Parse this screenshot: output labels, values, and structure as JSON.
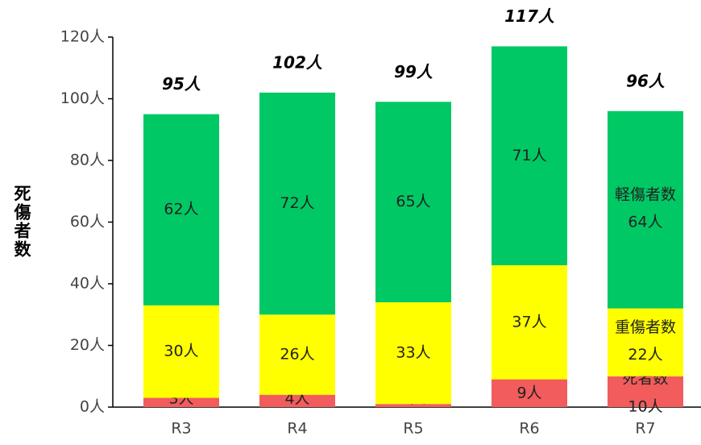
{
  "chart_data": {
    "type": "stacked_bar",
    "y_label": "死傷者数",
    "categories": [
      "R3",
      "R4",
      "R5",
      "R6",
      "R7"
    ],
    "series": [
      {
        "name": "死者数",
        "color": "#f25c5c",
        "values": [
          3,
          4,
          1,
          9,
          10
        ],
        "value_labels": [
          "3人",
          "4人",
          "1人",
          "9人",
          "10人"
        ]
      },
      {
        "name": "重傷者数",
        "color": "#ffff00",
        "values": [
          30,
          26,
          33,
          37,
          22
        ],
        "value_labels": [
          "30人",
          "26人",
          "33人",
          "37人",
          "22人"
        ]
      },
      {
        "name": "軽傷者数",
        "color": "#00c864",
        "values": [
          62,
          72,
          65,
          71,
          64
        ],
        "value_labels": [
          "62人",
          "72人",
          "65人",
          "71人",
          "64人"
        ]
      }
    ],
    "totals": [
      95,
      102,
      99,
      117,
      96
    ],
    "total_labels": [
      "95人",
      "102人",
      "99人",
      "117人",
      "96人"
    ],
    "ylim": [
      0,
      120
    ],
    "yticks": [
      {
        "value": 0,
        "label": "0人"
      },
      {
        "value": 20,
        "label": "20人"
      },
      {
        "value": 40,
        "label": "40人"
      },
      {
        "value": 60,
        "label": "60人"
      },
      {
        "value": 80,
        "label": "80人"
      },
      {
        "value": 100,
        "label": "100人"
      },
      {
        "value": 120,
        "label": "120人"
      }
    ]
  }
}
